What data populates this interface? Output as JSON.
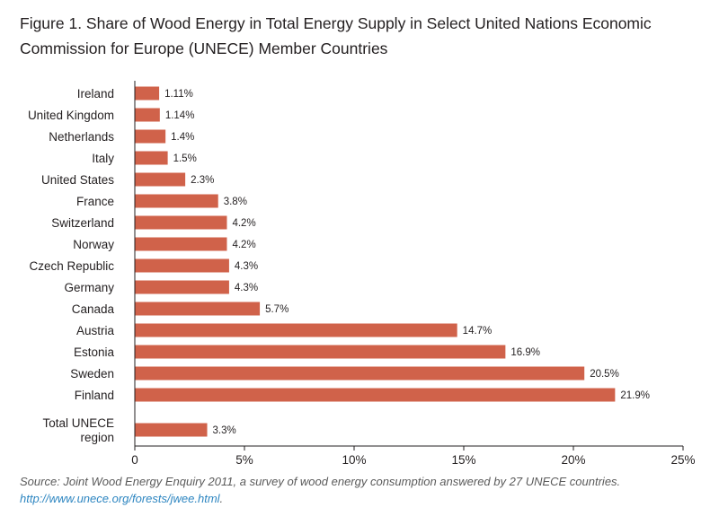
{
  "title": "Figure 1. Share of Wood Energy in Total Energy Supply in Select United Nations Economic Commission for Europe (UNECE) Member Countries",
  "source": {
    "text": "Source: Joint Wood Energy Enquiry 2011, a survey of wood energy consumption answered by 27 UNECE countries.",
    "link": "http://www.unece.org/forests/jwee.html",
    "link_suffix": "."
  },
  "colors": {
    "bar": "#d0624a",
    "axis": "#231f20",
    "link": "#2e86c1"
  },
  "chart_data": {
    "type": "bar",
    "orientation": "horizontal",
    "categories": [
      "Ireland",
      "United Kingdom",
      "Netherlands",
      "Italy",
      "United States",
      "France",
      "Switzerland",
      "Norway",
      "Czech Republic",
      "Germany",
      "Canada",
      "Austria",
      "Estonia",
      "Sweden",
      "Finland",
      "Total UNECE region"
    ],
    "values": [
      1.11,
      1.14,
      1.4,
      1.5,
      2.3,
      3.8,
      4.2,
      4.2,
      4.3,
      4.3,
      5.7,
      14.7,
      16.9,
      20.5,
      21.9,
      3.3
    ],
    "value_labels": [
      "1.11%",
      "1.14%",
      "1.4%",
      "1.5%",
      "2.3%",
      "3.8%",
      "4.2%",
      "4.2%",
      "4.3%",
      "4.3%",
      "5.7%",
      "14.7%",
      "16.9%",
      "20.5%",
      "21.9%",
      "3.3%"
    ],
    "xlim": [
      0,
      25
    ],
    "x_ticks": [
      "0",
      "5%",
      "10%",
      "15%",
      "20%",
      "25%"
    ],
    "xlabel": "",
    "ylabel": "",
    "grid": false,
    "legend": "none"
  }
}
